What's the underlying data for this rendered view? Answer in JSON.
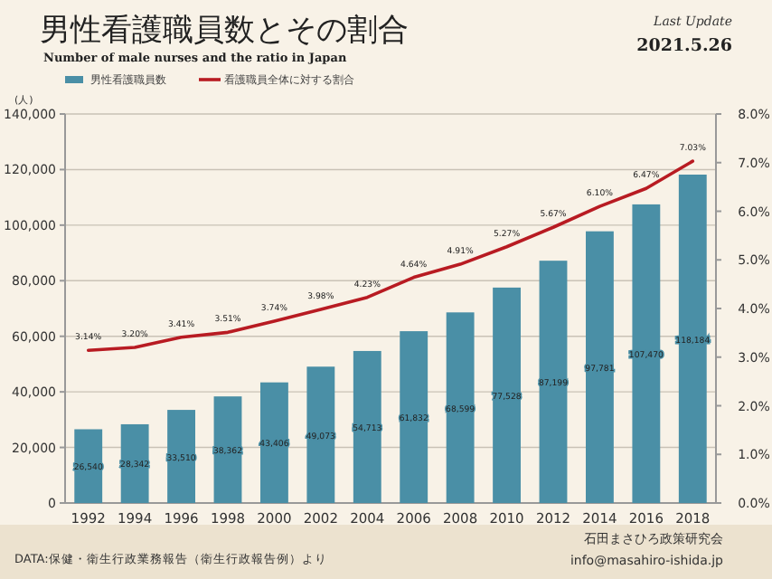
{
  "chart_data": {
    "type": "bar",
    "title": "男性看護職員数とその割合",
    "subtitle": "Number of male nurses and the ratio in Japan",
    "ylabel": "(人)",
    "annotations": [
      "Last Update",
      "2021.5.26",
      "DATA:保健・衛生行政業務報告（衛生行政報告例）より",
      "石田まさひろ政策研究会",
      "info@masahiro-ishida.jp"
    ],
    "categories": [
      "1992",
      "1994",
      "1996",
      "1998",
      "2000",
      "2002",
      "2004",
      "2006",
      "2008",
      "2010",
      "2012",
      "2014",
      "2016",
      "2018"
    ],
    "series": [
      {
        "name": "男性看護職員数",
        "color": "#4a8fa6",
        "values": [
          26540,
          28342,
          33510,
          38362,
          43406,
          49073,
          54713,
          61832,
          68599,
          77528,
          87199,
          97781,
          107470,
          118184
        ],
        "value_labels": [
          "26,540",
          "28,342",
          "33,510",
          "38,362",
          "43,406",
          "49,073",
          "54,713",
          "61,832",
          "68,599",
          "77,528",
          "87,199",
          "97,781",
          "107,470",
          "118,184"
        ]
      },
      {
        "name": "看護職員全体に対する割合",
        "type": "line",
        "axis": "y2",
        "color": "#b81b22",
        "values": [
          3.14,
          3.2,
          3.41,
          3.51,
          3.74,
          3.98,
          4.23,
          4.64,
          4.91,
          5.27,
          5.67,
          6.1,
          6.47,
          7.03
        ],
        "value_labels": [
          "3.14%",
          "3.20%",
          "3.41%",
          "3.51%",
          "3.74%",
          "3.98%",
          "4.23%",
          "4.64%",
          "4.91%",
          "5.27%",
          "5.67%",
          "6.10%",
          "6.47%",
          "7.03%"
        ]
      }
    ],
    "ylim": [
      0,
      140000
    ],
    "yticks": [
      {
        "value": 0,
        "label": "0"
      },
      {
        "value": 20000,
        "label": "20,000"
      },
      {
        "value": 40000,
        "label": "40,000"
      },
      {
        "value": 60000,
        "label": "60,000"
      },
      {
        "value": 80000,
        "label": "80,000"
      },
      {
        "value": 100000,
        "label": "100,000"
      },
      {
        "value": 120000,
        "label": "120,000"
      },
      {
        "value": 140000,
        "label": "140,000"
      }
    ],
    "y2lim": [
      0,
      8
    ],
    "y2ticks": [
      {
        "value": 0,
        "label": "0.0%"
      },
      {
        "value": 1,
        "label": "1.0%"
      },
      {
        "value": 2,
        "label": "2.0%"
      },
      {
        "value": 3,
        "label": "3.0%"
      },
      {
        "value": 4,
        "label": "4.0%"
      },
      {
        "value": 5,
        "label": "5.0%"
      },
      {
        "value": 6,
        "label": "6.0%"
      },
      {
        "value": 7,
        "label": "7.0%"
      },
      {
        "value": 8,
        "label": "8.0%"
      }
    ],
    "grid": "y",
    "legend": "top left",
    "marker": "none",
    "line_style": "solid"
  }
}
